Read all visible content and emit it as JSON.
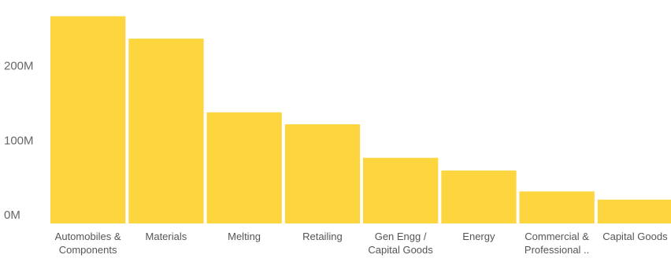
{
  "chart_data": {
    "type": "bar",
    "categories": [
      [
        "Automobiles &",
        "Components"
      ],
      [
        "Materials"
      ],
      [
        "Melting"
      ],
      [
        "Retailing"
      ],
      [
        "Gen Engg /",
        "Capital Goods"
      ],
      [
        "Energy"
      ],
      [
        "Commercial &",
        "Professional .."
      ],
      [
        "Capital Goods"
      ]
    ],
    "values": [
      278,
      248,
      149,
      133,
      88,
      71,
      43,
      32
    ],
    "y_ticks": [
      {
        "value": 0,
        "label": "0M"
      },
      {
        "value": 100,
        "label": "100M"
      },
      {
        "value": 200,
        "label": "200M"
      }
    ],
    "ylim": [
      0,
      285
    ],
    "grid": false,
    "title": "",
    "xlabel": "",
    "ylabel": "",
    "bar_color": "#FCD53F",
    "label_color": "#555555",
    "tick_color": "#666666"
  }
}
